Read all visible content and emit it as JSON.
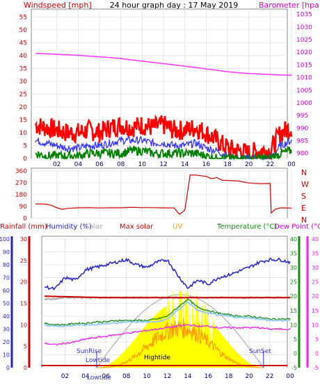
{
  "header": {
    "left_label": "Windspeed [mph]",
    "center_label": "24 hour graph day : 17 May 2019",
    "right_label": "Barometer [hpa]"
  },
  "lower_header": {
    "rainfall": "Rainfall (mm)",
    "humidity": "Humidity (%)",
    "solar": "Solar",
    "max_solar": "Max solar",
    "uv": "UV",
    "temperature": "Temperature (°C)",
    "dew_point": "Dew Point (°C)"
  },
  "annotations": {
    "sunrise": "SunRise",
    "sunset": "SunSet",
    "lowtide_1": "Lowtide",
    "hightide": "Hightide",
    "lowtide_2": "Lowtide"
  },
  "colors": {
    "wind_gust": "#ff0000",
    "wind_avg": "#3333ff",
    "wind_low": "#008000",
    "barometer": "#ff33ff",
    "direction": "#cc0000",
    "humidity": "#2222cc",
    "temperature": "#118811",
    "dew_point": "#ee22ee",
    "solar": "#ffff00",
    "max_solar": "#aaaaaa",
    "uv": "#ff9900",
    "rain": "#cc0000",
    "axis_left": "#cc0000",
    "axis_right": "#cc00cc"
  },
  "chart_data": [
    {
      "type": "line",
      "title": "24 hour graph day : 17 May 2019",
      "x_ticks": [
        "02",
        "04",
        "06",
        "08",
        "10",
        "12",
        "14",
        "16",
        "18",
        "20",
        "22",
        "00"
      ],
      "y_left": {
        "label": "Windspeed [mph]",
        "ticks": [
          0,
          5,
          10,
          15,
          20,
          25,
          30,
          35,
          40,
          45,
          50,
          55
        ],
        "range": [
          0,
          57
        ]
      },
      "y_right": {
        "label": "Barometer [hpa]",
        "ticks": [
          980,
          985,
          990,
          995,
          1000,
          1005,
          1010,
          1015,
          1020,
          1025,
          1030,
          1035
        ],
        "range": [
          978,
          1036
        ]
      },
      "series": [
        {
          "name": "gust",
          "axis": "left",
          "x": [
            0,
            1,
            2,
            3,
            4,
            5,
            6,
            7,
            8,
            9,
            10,
            11,
            12,
            13,
            14,
            15,
            16,
            17,
            18,
            19,
            20,
            21,
            22,
            23,
            24
          ],
          "values": [
            13,
            12,
            11,
            10,
            10,
            11,
            10,
            12,
            13,
            12,
            13,
            12,
            13,
            11,
            11,
            12,
            10,
            7,
            4,
            3,
            2,
            3,
            3,
            10,
            12
          ]
        },
        {
          "name": "average",
          "axis": "left",
          "x": [
            0,
            1,
            2,
            3,
            4,
            5,
            6,
            7,
            8,
            9,
            10,
            11,
            12,
            13,
            14,
            15,
            16,
            17,
            18,
            19,
            20,
            21,
            22,
            23,
            24
          ],
          "values": [
            7,
            6,
            5,
            4,
            4,
            5,
            5,
            6,
            7,
            7,
            7,
            6,
            6,
            5,
            5,
            6,
            4,
            3,
            1,
            0,
            0,
            0,
            0,
            5,
            7
          ]
        },
        {
          "name": "low",
          "axis": "left",
          "x": [
            0,
            1,
            2,
            3,
            4,
            5,
            6,
            7,
            8,
            9,
            10,
            11,
            12,
            13,
            14,
            15,
            16,
            17,
            18,
            19,
            20,
            21,
            22,
            23,
            24
          ],
          "values": [
            2,
            1,
            1,
            1,
            1,
            2,
            2,
            2,
            2,
            3,
            3,
            2,
            2,
            2,
            2,
            2,
            1,
            0,
            0,
            0,
            0,
            0,
            0,
            2,
            3
          ]
        },
        {
          "name": "barometer",
          "axis": "right",
          "x": [
            0,
            1,
            2,
            3,
            4,
            5,
            6,
            7,
            8,
            9,
            10,
            11,
            12,
            13,
            14,
            15,
            16,
            17,
            18,
            19,
            20,
            21,
            22,
            23,
            24
          ],
          "values": [
            1019.5,
            1019.4,
            1019.2,
            1019,
            1018.8,
            1018.5,
            1018.2,
            1017.9,
            1017.5,
            1017,
            1016.5,
            1016,
            1015.5,
            1015,
            1014.5,
            1014,
            1013.4,
            1012.9,
            1012.3,
            1011.9,
            1011.6,
            1011.4,
            1011.2,
            1011.0,
            1010.9
          ]
        }
      ]
    },
    {
      "type": "line",
      "title": "",
      "y_left": {
        "ticks": [
          0,
          90,
          180,
          270,
          360
        ],
        "range": [
          0,
          360
        ]
      },
      "y_right_labels": [
        "N",
        "W",
        "S",
        "E",
        "N"
      ],
      "series": [
        {
          "name": "direction",
          "x": [
            0,
            0.5,
            1,
            1.5,
            2,
            2.5,
            3,
            4,
            5,
            6,
            7,
            8,
            9,
            10,
            11,
            12,
            13,
            13.5,
            14,
            14.5,
            15,
            16,
            16.5,
            17,
            17.5,
            18,
            19,
            20,
            21,
            22,
            22.1,
            22.5,
            23,
            24
          ],
          "values": [
            110,
            108,
            105,
            100,
            80,
            70,
            75,
            78,
            80,
            80,
            78,
            80,
            82,
            80,
            82,
            80,
            78,
            30,
            60,
            330,
            330,
            320,
            300,
            310,
            290,
            290,
            285,
            270,
            265,
            262,
            40,
            70,
            80,
            78
          ]
        }
      ]
    },
    {
      "type": "line",
      "title": "",
      "y_axes": {
        "rainfall": {
          "ticks": [
            0,
            5,
            10,
            15,
            20,
            25,
            30
          ],
          "range": [
            0,
            30
          ]
        },
        "humidity": {
          "ticks": [
            0,
            10,
            20,
            30,
            40,
            50,
            60,
            70,
            80,
            90,
            100
          ],
          "range": [
            0,
            100
          ]
        },
        "temperature": {
          "ticks": [
            -5,
            0,
            5,
            10,
            15,
            20,
            25,
            30,
            35,
            40
          ],
          "range": [
            -5,
            40
          ]
        },
        "dew_point": {
          "ticks": [
            -5,
            0,
            5,
            10,
            15,
            20,
            25,
            30,
            35,
            40
          ],
          "range": [
            -5,
            40
          ]
        }
      },
      "series": [
        {
          "name": "humidity",
          "x": [
            0,
            1,
            2,
            3,
            4,
            5,
            6,
            7,
            8,
            9,
            10,
            11,
            12,
            13,
            14,
            15,
            16,
            17,
            18,
            19,
            20,
            21,
            22,
            23,
            24
          ],
          "values": [
            63,
            61,
            70,
            68,
            76,
            78,
            80,
            82,
            84,
            80,
            78,
            82,
            84,
            72,
            62,
            68,
            65,
            70,
            72,
            75,
            78,
            82,
            84,
            84,
            82
          ]
        },
        {
          "name": "temperature",
          "x": [
            0,
            1,
            2,
            3,
            4,
            5,
            6,
            7,
            8,
            9,
            10,
            11,
            12,
            13,
            14,
            15,
            16,
            17,
            18,
            19,
            20,
            21,
            22,
            23,
            24
          ],
          "values": [
            10.5,
            10,
            10,
            10.5,
            10.5,
            11,
            11,
            11.5,
            11.5,
            11.5,
            11.5,
            12,
            13,
            16,
            19,
            16,
            15,
            14,
            13.5,
            13,
            13,
            12.5,
            12,
            12,
            12
          ]
        },
        {
          "name": "dew point",
          "x": [
            0,
            1,
            2,
            3,
            4,
            5,
            6,
            7,
            8,
            9,
            10,
            11,
            12,
            13,
            14,
            15,
            16,
            17,
            18,
            19,
            20,
            21,
            22,
            23,
            24
          ],
          "values": [
            3.5,
            3,
            3.5,
            4,
            5,
            5.5,
            6,
            6.5,
            7,
            7.5,
            8,
            8.5,
            9,
            9.5,
            10,
            9.5,
            9.5,
            9,
            9,
            9,
            9,
            9,
            8.5,
            8.5,
            8.5
          ]
        },
        {
          "name": "max solar",
          "x": [
            0,
            1,
            2,
            3,
            4,
            5,
            6,
            7,
            8,
            9,
            10,
            11,
            12,
            13,
            14,
            15,
            16,
            17,
            18,
            19,
            20,
            21,
            22,
            23,
            24
          ],
          "values": [
            19,
            19,
            19.5,
            19.5,
            19.5,
            19.5,
            19.5,
            19.5,
            19.5,
            19.5,
            19.5,
            19.5,
            19.5,
            19.5,
            19.5,
            19.5,
            19.5,
            19.5,
            19.5,
            19.5,
            19.5,
            19.5,
            19.5,
            19.5,
            19.5
          ]
        },
        {
          "name": "humidity low",
          "x": [
            0,
            1,
            2,
            3,
            4,
            5,
            6,
            7,
            8,
            9,
            10,
            11,
            12,
            13,
            14,
            15,
            16,
            17,
            18,
            19,
            20,
            21,
            22,
            23,
            24
          ],
          "values": [
            10,
            9.5,
            9.5,
            10,
            10,
            10,
            10.5,
            10.5,
            11,
            11,
            11,
            11,
            12,
            15,
            18,
            15,
            14,
            13.5,
            13,
            12.5,
            12.5,
            12,
            11.5,
            11.5,
            11.5
          ]
        },
        {
          "name": "rain line",
          "x": [
            0,
            6,
            12,
            15,
            18,
            24
          ],
          "values": [
            20,
            19.5,
            19.5,
            19.5,
            19.5,
            19.5
          ]
        }
      ],
      "solar_peak_hour": 14,
      "sunrise_hour": 5.1,
      "sunset_hour": 21.4
    }
  ]
}
